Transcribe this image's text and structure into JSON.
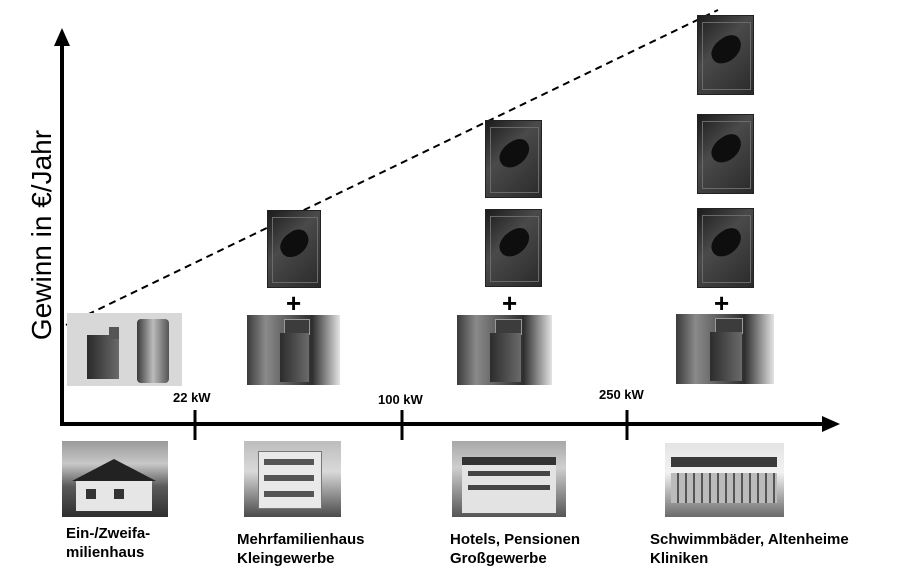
{
  "y_axis_label": "Gewinn in €/Jahr",
  "thresholds": [
    {
      "label": "22 kW"
    },
    {
      "label": "100 kW"
    },
    {
      "label": "250 kW"
    }
  ],
  "categories": [
    {
      "line1": "Ein-/Zweifa-",
      "line2": "milienhaus",
      "collectors": 0
    },
    {
      "line1": "Mehrfamilienhaus",
      "line2": "Kleingewerbe",
      "collectors": 1
    },
    {
      "line1": "Hotels, Pensionen",
      "line2": "Großgewerbe",
      "collectors": 2
    },
    {
      "line1": "Schwimmbäder, Altenheime",
      "line2": "Kliniken",
      "collectors": 3
    }
  ],
  "plus_symbol": "+",
  "colors": {
    "axis": "#000000",
    "trend_line": "#000000"
  },
  "icons": [
    "pellet-boiler-image",
    "gas-boiler-image",
    "solar-collector-image",
    "building-photo"
  ]
}
